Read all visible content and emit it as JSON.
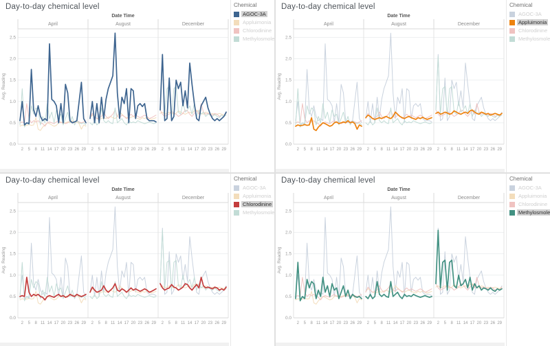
{
  "chart_data": {
    "type": "line",
    "title": "Day-to-day chemical level",
    "xlabel": "Date Time",
    "ylabel": "Avg. Reading",
    "legend_title": "Chemical",
    "legend_position": "right",
    "grid": true,
    "ylim": [
      0,
      2.7
    ],
    "yticks": [
      "0.0",
      "0.5",
      "1.0",
      "1.5",
      "2.0",
      "2.5"
    ],
    "month_panels": [
      "April",
      "August",
      "December"
    ],
    "xticks": [
      2,
      5,
      8,
      11,
      14,
      17,
      20,
      23,
      26,
      29
    ],
    "days_per_month": 30,
    "highlights": [
      "AGOC-3A",
      "Appluimonia",
      "Chlorodinine",
      "Methylosmolene"
    ],
    "highlight_bg": "#d2d2d2",
    "series": [
      {
        "name": "AGOC-3A",
        "color": "#3d648f",
        "color_faded": "#c9d2de",
        "values": {
          "April": [
            0.55,
            1.0,
            0.45,
            0.5,
            0.48,
            1.75,
            0.8,
            0.65,
            0.9,
            0.65,
            0.55,
            0.6,
            0.55,
            2.35,
            1.05,
            1.0,
            0.9,
            0.5,
            0.95,
            0.5,
            1.4,
            1.2,
            0.55,
            0.5,
            0.52,
            0.55,
            1.0,
            1.45,
            0.6,
            0.5
          ],
          "August": [
            0.6,
            1.0,
            0.5,
            0.95,
            0.5,
            1.1,
            0.6,
            1.05,
            1.3,
            1.45,
            1.6,
            2.6,
            1.2,
            0.6,
            1.1,
            0.95,
            1.3,
            0.5,
            1.3,
            1.25,
            0.6,
            0.9,
            0.95,
            0.88,
            0.95,
            0.6,
            0.55,
            0.55,
            0.55,
            0.52
          ],
          "December": [
            0.8,
            2.1,
            0.55,
            0.6,
            1.55,
            0.55,
            0.65,
            1.5,
            1.3,
            1.45,
            0.9,
            1.25,
            0.85,
            1.9,
            1.4,
            0.95,
            0.6,
            0.55,
            0.9,
            1.0,
            1.1,
            0.85,
            0.7,
            0.6,
            0.55,
            0.6,
            0.55,
            0.6,
            0.65,
            0.75
          ]
        }
      },
      {
        "name": "Appluimonia",
        "color": "#ed820e",
        "color_faded": "#f3ddbb",
        "values": {
          "April": [
            0.42,
            0.45,
            0.43,
            0.44,
            0.46,
            0.44,
            0.45,
            0.62,
            0.35,
            0.32,
            0.4,
            0.45,
            0.5,
            0.48,
            0.45,
            0.42,
            0.44,
            0.5,
            0.52,
            0.48,
            0.5,
            0.52,
            0.5,
            0.55,
            0.5,
            0.52,
            0.48,
            0.35,
            0.45,
            0.42
          ],
          "August": [
            0.62,
            0.68,
            0.65,
            0.6,
            0.58,
            0.6,
            0.62,
            0.6,
            0.63,
            0.65,
            0.62,
            0.6,
            0.65,
            0.75,
            0.7,
            0.65,
            0.62,
            0.6,
            0.63,
            0.65,
            0.62,
            0.6,
            0.58,
            0.62,
            0.6,
            0.63,
            0.6,
            0.58,
            0.6,
            0.62
          ],
          "December": [
            0.72,
            0.75,
            0.7,
            0.72,
            0.75,
            0.73,
            0.7,
            0.72,
            0.78,
            0.75,
            0.72,
            0.7,
            0.73,
            0.75,
            0.72,
            0.78,
            0.8,
            0.75,
            0.72,
            0.7,
            0.75,
            0.73,
            0.7,
            0.72,
            0.68,
            0.7,
            0.72,
            0.7,
            0.68,
            0.72
          ]
        }
      },
      {
        "name": "Chlorodinine",
        "color": "#c43d3d",
        "color_faded": "#f0c3c1",
        "values": {
          "April": [
            0.5,
            0.52,
            0.5,
            0.95,
            0.6,
            0.5,
            0.55,
            0.52,
            0.55,
            0.5,
            0.48,
            0.42,
            0.5,
            0.52,
            0.5,
            0.48,
            0.52,
            0.55,
            0.5,
            0.52,
            0.48,
            0.5,
            0.55,
            0.52,
            0.5,
            0.55,
            0.52,
            0.5,
            0.52,
            0.55
          ],
          "August": [
            0.6,
            0.72,
            0.65,
            0.6,
            0.62,
            0.65,
            0.75,
            0.65,
            0.6,
            0.65,
            0.7,
            0.8,
            0.65,
            0.62,
            0.68,
            0.65,
            0.6,
            0.65,
            0.7,
            0.65,
            0.68,
            0.65,
            0.62,
            0.65,
            0.68,
            0.65,
            0.6,
            0.62,
            0.65,
            0.68
          ],
          "December": [
            0.8,
            0.7,
            0.65,
            0.68,
            0.7,
            0.78,
            0.72,
            0.7,
            0.65,
            0.68,
            0.72,
            0.8,
            0.78,
            0.7,
            0.65,
            0.72,
            0.78,
            0.7,
            0.95,
            0.75,
            0.7,
            0.72,
            0.7,
            0.68,
            0.72,
            0.7,
            0.65,
            0.68,
            0.65,
            0.72
          ]
        }
      },
      {
        "name": "Methylosmolene",
        "color": "#429182",
        "color_faded": "#c2dcd6",
        "values": {
          "April": [
            0.45,
            1.3,
            0.4,
            0.5,
            0.45,
            0.9,
            0.7,
            0.85,
            0.8,
            0.45,
            0.65,
            0.5,
            0.95,
            0.6,
            0.75,
            0.5,
            0.8,
            0.65,
            0.7,
            0.45,
            0.6,
            0.75,
            0.5,
            0.65,
            0.45,
            0.55,
            0.5,
            0.48,
            0.5,
            0.45
          ],
          "August": [
            0.5,
            0.45,
            0.55,
            0.45,
            0.5,
            0.85,
            0.55,
            0.5,
            0.55,
            0.5,
            0.48,
            0.85,
            0.5,
            0.55,
            0.6,
            0.5,
            0.45,
            0.55,
            0.5,
            0.52,
            0.5,
            0.55,
            0.52,
            0.5,
            0.48,
            0.5,
            0.52,
            0.5,
            0.48,
            0.5
          ],
          "December": [
            0.8,
            2.05,
            0.7,
            1.3,
            1.35,
            0.65,
            1.3,
            1.35,
            0.75,
            0.7,
            1.0,
            0.75,
            0.8,
            0.9,
            0.7,
            0.95,
            0.65,
            0.8,
            0.7,
            0.75,
            0.65,
            0.7,
            0.68,
            0.65,
            0.7,
            0.65,
            0.62,
            0.68,
            0.65,
            0.68
          ]
        }
      }
    ]
  }
}
